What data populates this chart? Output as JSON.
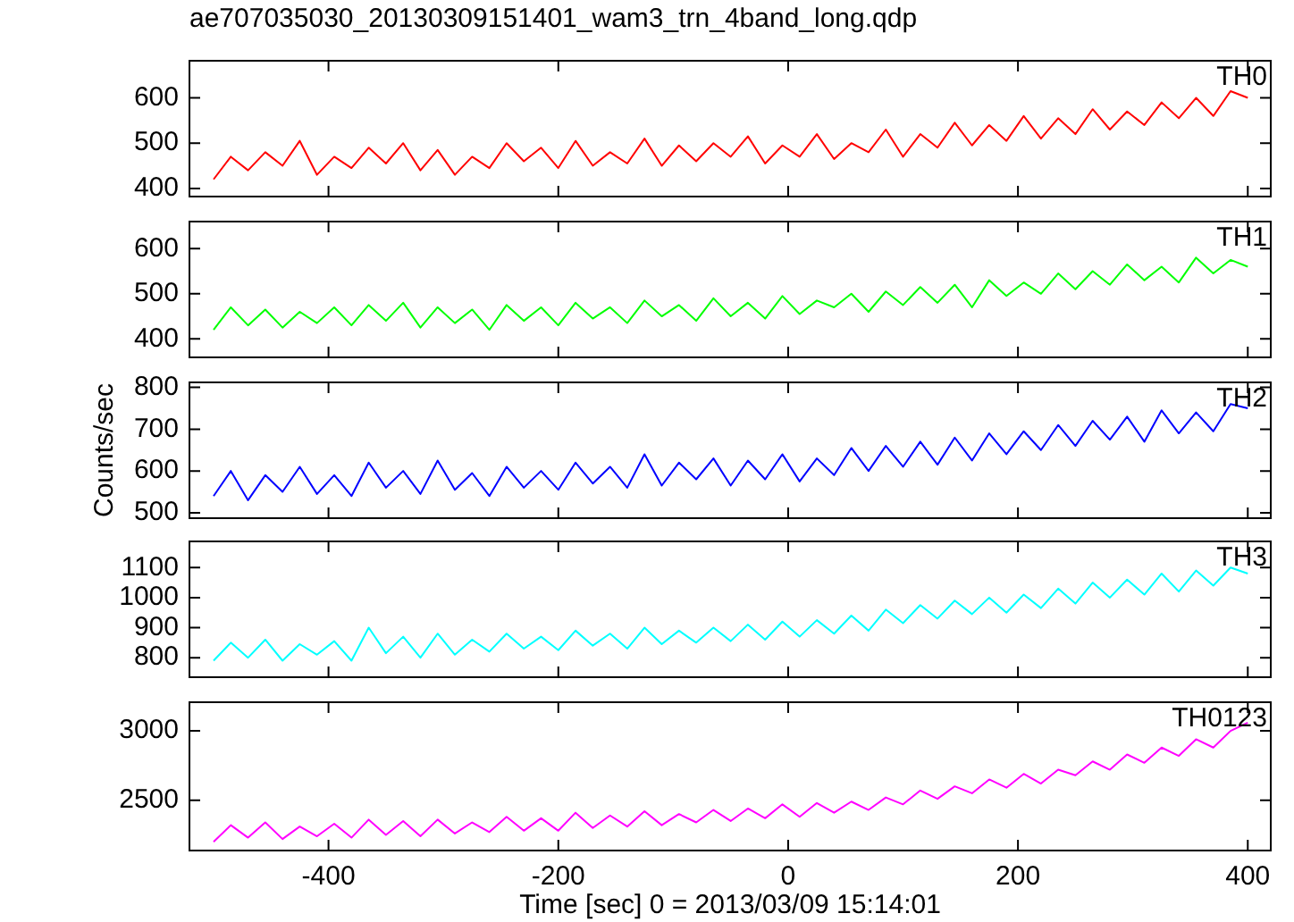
{
  "chart_data": [
    {
      "type": "line",
      "title": "ae707035030_20130309151401_wam3_trn_4band_long.qdp",
      "tick_labels": "y",
      "x": [
        -500,
        -485,
        -470,
        -455,
        -440,
        -425,
        -410,
        -395,
        -380,
        -365,
        -350,
        -335,
        -320,
        -305,
        -290,
        -275,
        -260,
        -245,
        -230,
        -215,
        -200,
        -185,
        -170,
        -155,
        -140,
        -125,
        -110,
        -95,
        -80,
        -65,
        -50,
        -35,
        -20,
        -5,
        10,
        25,
        40,
        55,
        70,
        85,
        100,
        115,
        130,
        145,
        160,
        175,
        190,
        205,
        220,
        235,
        250,
        265,
        280,
        295,
        310,
        325,
        340,
        355,
        370,
        385,
        400
      ],
      "xlim": [
        -521,
        420
      ],
      "xticks": [
        -400,
        -200,
        0,
        200,
        400
      ],
      "ylim": [
        382,
        682
      ],
      "yticks": [
        400,
        500,
        600
      ],
      "series": [
        {
          "name": "TH0",
          "color": "#ff0000",
          "values": [
            420,
            470,
            440,
            480,
            450,
            505,
            430,
            470,
            445,
            490,
            455,
            500,
            440,
            485,
            430,
            470,
            445,
            500,
            460,
            490,
            445,
            505,
            450,
            480,
            455,
            510,
            450,
            495,
            460,
            500,
            470,
            515,
            455,
            495,
            470,
            520,
            465,
            500,
            480,
            530,
            470,
            520,
            490,
            545,
            495,
            540,
            505,
            560,
            510,
            555,
            520,
            575,
            530,
            570,
            540,
            590,
            555,
            600,
            560,
            615,
            600
          ]
        }
      ]
    },
    {
      "type": "line",
      "tick_labels": "y",
      "x": [
        -500,
        -485,
        -470,
        -455,
        -440,
        -425,
        -410,
        -395,
        -380,
        -365,
        -350,
        -335,
        -320,
        -305,
        -290,
        -275,
        -260,
        -245,
        -230,
        -215,
        -200,
        -185,
        -170,
        -155,
        -140,
        -125,
        -110,
        -95,
        -80,
        -65,
        -50,
        -35,
        -20,
        -5,
        10,
        25,
        40,
        55,
        70,
        85,
        100,
        115,
        130,
        145,
        160,
        175,
        190,
        205,
        220,
        235,
        250,
        265,
        280,
        295,
        310,
        325,
        340,
        355,
        370,
        385,
        400
      ],
      "xlim": [
        -521,
        420
      ],
      "xticks": [
        -400,
        -200,
        0,
        200,
        400
      ],
      "ylim": [
        359,
        660
      ],
      "yticks": [
        400,
        500,
        600
      ],
      "series": [
        {
          "name": "TH1",
          "color": "#00ff00",
          "values": [
            420,
            470,
            430,
            465,
            425,
            460,
            435,
            470,
            430,
            475,
            440,
            480,
            425,
            470,
            435,
            465,
            420,
            475,
            440,
            470,
            430,
            480,
            445,
            470,
            435,
            485,
            450,
            475,
            440,
            490,
            450,
            480,
            445,
            495,
            455,
            485,
            470,
            500,
            460,
            505,
            475,
            515,
            480,
            520,
            470,
            530,
            495,
            525,
            500,
            545,
            510,
            550,
            520,
            565,
            530,
            560,
            525,
            580,
            545,
            575,
            560
          ]
        }
      ]
    },
    {
      "type": "line",
      "tick_labels": "y",
      "ylabel": "Counts/sec",
      "x": [
        -500,
        -485,
        -470,
        -455,
        -440,
        -425,
        -410,
        -395,
        -380,
        -365,
        -350,
        -335,
        -320,
        -305,
        -290,
        -275,
        -260,
        -245,
        -230,
        -215,
        -200,
        -185,
        -170,
        -155,
        -140,
        -125,
        -110,
        -95,
        -80,
        -65,
        -50,
        -35,
        -20,
        -5,
        10,
        25,
        40,
        55,
        70,
        85,
        100,
        115,
        130,
        145,
        160,
        175,
        190,
        205,
        220,
        235,
        250,
        265,
        280,
        295,
        310,
        325,
        340,
        355,
        370,
        385,
        400
      ],
      "xlim": [
        -521,
        420
      ],
      "xticks": [
        -400,
        -200,
        0,
        200,
        400
      ],
      "ylim": [
        487,
        812
      ],
      "yticks": [
        500,
        600,
        700,
        800
      ],
      "series": [
        {
          "name": "TH2",
          "color": "#0000ff",
          "values": [
            540,
            600,
            530,
            590,
            550,
            610,
            545,
            590,
            540,
            620,
            560,
            600,
            545,
            625,
            555,
            595,
            540,
            610,
            560,
            600,
            555,
            620,
            570,
            610,
            560,
            640,
            565,
            620,
            580,
            630,
            565,
            625,
            580,
            640,
            575,
            630,
            590,
            655,
            600,
            660,
            610,
            670,
            615,
            680,
            625,
            690,
            640,
            695,
            650,
            710,
            660,
            720,
            675,
            730,
            670,
            745,
            690,
            740,
            695,
            760,
            750
          ]
        }
      ]
    },
    {
      "type": "line",
      "tick_labels": "y",
      "x": [
        -500,
        -485,
        -470,
        -455,
        -440,
        -425,
        -410,
        -395,
        -380,
        -365,
        -350,
        -335,
        -320,
        -305,
        -290,
        -275,
        -260,
        -245,
        -230,
        -215,
        -200,
        -185,
        -170,
        -155,
        -140,
        -125,
        -110,
        -95,
        -80,
        -65,
        -50,
        -35,
        -20,
        -5,
        10,
        25,
        40,
        55,
        70,
        85,
        100,
        115,
        130,
        145,
        160,
        175,
        190,
        205,
        220,
        235,
        250,
        265,
        280,
        295,
        310,
        325,
        340,
        355,
        370,
        385,
        400
      ],
      "xlim": [
        -521,
        420
      ],
      "xticks": [
        -400,
        -200,
        0,
        200,
        400
      ],
      "ylim": [
        735,
        1187
      ],
      "yticks": [
        800,
        900,
        1000,
        1100
      ],
      "series": [
        {
          "name": "TH3",
          "color": "#00ffff",
          "values": [
            790,
            850,
            800,
            860,
            790,
            845,
            810,
            855,
            790,
            900,
            815,
            870,
            800,
            880,
            810,
            860,
            820,
            880,
            830,
            870,
            825,
            890,
            840,
            880,
            830,
            900,
            845,
            890,
            850,
            900,
            855,
            910,
            860,
            920,
            870,
            925,
            880,
            940,
            890,
            960,
            915,
            975,
            930,
            990,
            945,
            1000,
            950,
            1010,
            965,
            1030,
            980,
            1050,
            1000,
            1060,
            1010,
            1080,
            1020,
            1090,
            1040,
            1100,
            1080
          ]
        }
      ]
    },
    {
      "type": "line",
      "xlabel": "Time [sec] 0 = 2013/03/09 15:14:01",
      "x": [
        -500,
        -485,
        -470,
        -455,
        -440,
        -425,
        -410,
        -395,
        -380,
        -365,
        -350,
        -335,
        -320,
        -305,
        -290,
        -275,
        -260,
        -245,
        -230,
        -215,
        -200,
        -185,
        -170,
        -155,
        -140,
        -125,
        -110,
        -95,
        -80,
        -65,
        -50,
        -35,
        -20,
        -5,
        10,
        25,
        40,
        55,
        70,
        85,
        100,
        115,
        130,
        145,
        160,
        175,
        190,
        205,
        220,
        235,
        250,
        265,
        280,
        295,
        310,
        325,
        340,
        355,
        370,
        385,
        400
      ],
      "xlim": [
        -521,
        420
      ],
      "xticks": [
        -400,
        -200,
        0,
        200,
        400
      ],
      "ylim": [
        2137,
        3207
      ],
      "yticks": [
        2500,
        3000
      ],
      "series": [
        {
          "name": "TH0123",
          "color": "#ff00ff",
          "values": [
            2200,
            2320,
            2230,
            2340,
            2220,
            2310,
            2240,
            2330,
            2230,
            2360,
            2250,
            2350,
            2240,
            2360,
            2260,
            2340,
            2270,
            2380,
            2280,
            2370,
            2280,
            2410,
            2300,
            2390,
            2310,
            2420,
            2320,
            2400,
            2340,
            2430,
            2350,
            2440,
            2370,
            2470,
            2380,
            2480,
            2410,
            2490,
            2430,
            2520,
            2470,
            2570,
            2510,
            2600,
            2550,
            2650,
            2590,
            2690,
            2620,
            2720,
            2680,
            2780,
            2720,
            2830,
            2770,
            2880,
            2820,
            2940,
            2880,
            3000,
            3060
          ]
        }
      ]
    }
  ]
}
